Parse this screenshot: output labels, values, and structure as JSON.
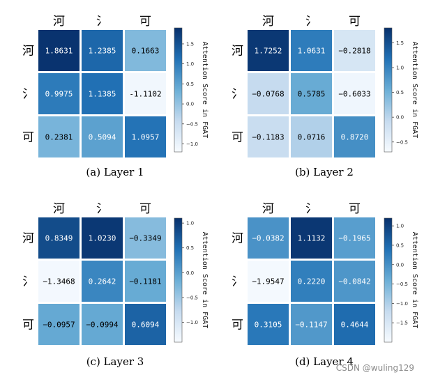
{
  "chart_data": [
    {
      "type": "heatmap",
      "caption": "(a) Layer 1",
      "columns": [
        "河",
        "氵",
        "可"
      ],
      "rows": [
        "河",
        "氵",
        "可"
      ],
      "values": [
        [
          1.8631,
          1.2385,
          0.1663
        ],
        [
          0.9975,
          1.1385,
          -1.1102
        ],
        [
          0.2381,
          0.5094,
          1.0957
        ]
      ],
      "labels": [
        [
          "1.8631",
          "1.2385",
          "0.1663"
        ],
        [
          "0.9975",
          "1.1385",
          "-1.1102"
        ],
        [
          "0.2381",
          "0.5094",
          "1.0957"
        ]
      ],
      "colorbar": {
        "label": "Attention Score in FGAT",
        "range": [
          -1.2,
          1.9
        ],
        "ticks": [
          1.5,
          1.0,
          0.5,
          0.0,
          -0.5,
          -1.0
        ],
        "tick_labels": [
          "1.5",
          "1.0",
          "0.5",
          "0.0",
          "−0.5",
          "−1.0"
        ]
      }
    },
    {
      "type": "heatmap",
      "caption": "(b) Layer 2",
      "columns": [
        "河",
        "氵",
        "可"
      ],
      "rows": [
        "河",
        "氵",
        "可"
      ],
      "values": [
        [
          1.7252,
          1.0631,
          -0.2818
        ],
        [
          -0.0768,
          0.5785,
          -0.6033
        ],
        [
          -0.1183,
          0.0716,
          0.872
        ]
      ],
      "labels": [
        [
          "1.7252",
          "1.0631",
          "−0.2818"
        ],
        [
          "−0.0768",
          "0.5785",
          "−0.6033"
        ],
        [
          "−0.1183",
          "0.0716",
          "0.8720"
        ]
      ],
      "colorbar": {
        "label": "Attention Score in FGAT",
        "range": [
          -0.7,
          1.8
        ],
        "ticks": [
          1.5,
          1.0,
          0.5,
          0.0,
          -0.5
        ],
        "tick_labels": [
          "1.5",
          "1.0",
          "0.5",
          "0.0",
          "−0.5"
        ]
      }
    },
    {
      "type": "heatmap",
      "caption": "(c) Layer 3",
      "columns": [
        "河",
        "氵",
        "可"
      ],
      "rows": [
        "河",
        "氵",
        "可"
      ],
      "values": [
        [
          0.8349,
          1.023,
          -0.3349
        ],
        [
          -1.3468,
          0.2642,
          -0.1181
        ],
        [
          -0.0957,
          -0.0994,
          0.6094
        ]
      ],
      "labels": [
        [
          "0.8349",
          "1.0230",
          "−0.3349"
        ],
        [
          "−1.3468",
          "0.2642",
          "−0.1181"
        ],
        [
          "−0.0957",
          "−0.0994",
          "0.6094"
        ]
      ],
      "colorbar": {
        "label": "Attention Score in FGAT",
        "range": [
          -1.4,
          1.1
        ],
        "ticks": [
          1.0,
          0.5,
          0.0,
          -0.5,
          -1.0
        ],
        "tick_labels": [
          "1.0",
          "0.5",
          "0.0",
          "−0.5",
          "−1.0"
        ]
      }
    },
    {
      "type": "heatmap",
      "caption": "(d) Layer 4",
      "columns": [
        "河",
        "氵",
        "可"
      ],
      "rows": [
        "河",
        "氵",
        "可"
      ],
      "values": [
        [
          -0.0382,
          1.1132,
          -0.1965
        ],
        [
          -1.9547,
          0.222,
          -0.0842
        ],
        [
          0.3105,
          -0.1147,
          0.4644
        ]
      ],
      "labels": [
        [
          "−0.0382",
          "1.1132",
          "−0.1965"
        ],
        [
          "−1.9547",
          "0.2220",
          "−0.0842"
        ],
        [
          "0.3105",
          "−0.1147",
          "0.4644"
        ]
      ],
      "colorbar": {
        "label": "Attention Score in FGAT",
        "range": [
          -2.0,
          1.2
        ],
        "ticks": [
          1.0,
          0.5,
          0.0,
          -0.5,
          -1.0,
          -1.5
        ],
        "tick_labels": [
          "1.0",
          "0.5",
          "0.0",
          "−0.5",
          "−1.0",
          "−1.5"
        ]
      }
    }
  ],
  "watermark": "CSDN @wuling129"
}
